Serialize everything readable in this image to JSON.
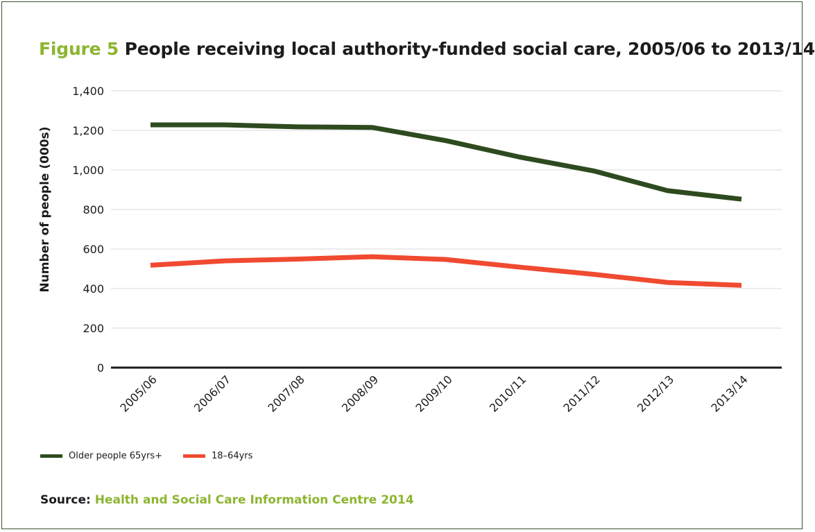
{
  "figure": {
    "label": "Figure 5",
    "title": "People receiving local authority-funded social care, 2005/06 to 2013/14"
  },
  "source": {
    "label": "Source:",
    "text": "Health and Social Care Information Centre 2014"
  },
  "colors": {
    "accent": "#8db530",
    "series_older": "#2e4a1f",
    "series_young": "#f04a30",
    "grid": "#d9d9d9",
    "axis": "#1a1a1a"
  },
  "chart_data": {
    "type": "line",
    "title": "People receiving local authority-funded social care, 2005/06 to 2013/14",
    "xlabel": "",
    "ylabel": "Number of people (000s)",
    "ylim": [
      0,
      1400
    ],
    "yticks": [
      0,
      200,
      400,
      600,
      800,
      1000,
      1200,
      1400
    ],
    "ytick_labels": [
      "0",
      "200",
      "400",
      "600",
      "800",
      "1,000",
      "1,200",
      "1,400"
    ],
    "grid": true,
    "legend_position": "bottom-left",
    "categories": [
      "2005/06",
      "2006/07",
      "2007/08",
      "2008/09",
      "2009/10",
      "2010/11",
      "2011/12",
      "2012/13",
      "2013/14"
    ],
    "series": [
      {
        "name": "Older people 65yrs+",
        "values": [
          1228,
          1228,
          1218,
          1215,
          1148,
          1065,
          995,
          895,
          852
        ]
      },
      {
        "name": "18–64yrs",
        "values": [
          518,
          540,
          549,
          561,
          547,
          508,
          472,
          431,
          416
        ]
      }
    ]
  }
}
